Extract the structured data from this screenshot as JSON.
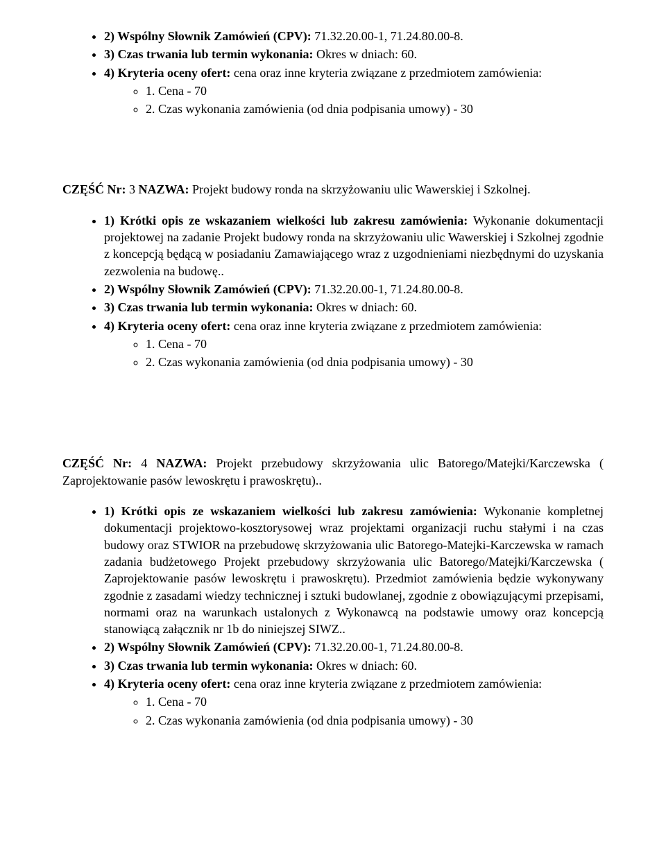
{
  "top": {
    "cpv_label": "2) Wspólny Słownik Zamówień (CPV):",
    "cpv_value": " 71.32.20.00-1, 71.24.80.00-8.",
    "dur_label": "3) Czas trwania lub termin wykonania:",
    "dur_value": " Okres w dniach: 60.",
    "crit_label": "4) Kryteria oceny ofert:",
    "crit_value": " cena oraz inne kryteria związane z przedmiotem zamówienia:",
    "sub1": "1. Cena - 70",
    "sub2": "2. Czas wykonania zamówienia (od dnia podpisania umowy) - 30"
  },
  "part3": {
    "heading_label": "CZĘŚĆ Nr:",
    "heading_num": " 3 ",
    "heading_name_label": "NAZWA:",
    "heading_name_value": " Projekt budowy ronda na skrzyżowaniu ulic Wawerskiej i Szkolnej.",
    "desc_label": "1) Krótki opis ze wskazaniem wielkości lub zakresu zamówienia:",
    "desc_value": " Wykonanie dokumentacji projektowej na zadanie Projekt budowy ronda na skrzyżowaniu ulic Wawerskiej i Szkolnej zgodnie z koncepcją będącą w posiadaniu Zamawiającego wraz z uzgodnieniami niezbędnymi do uzyskania zezwolenia na budowę..",
    "cpv_label": "2) Wspólny Słownik Zamówień (CPV):",
    "cpv_value": " 71.32.20.00-1, 71.24.80.00-8.",
    "dur_label": "3) Czas trwania lub termin wykonania:",
    "dur_value": " Okres w dniach: 60.",
    "crit_label": "4) Kryteria oceny ofert:",
    "crit_value": " cena oraz inne kryteria związane z przedmiotem zamówienia:",
    "sub1": "1. Cena - 70",
    "sub2": "2. Czas wykonania zamówienia (od dnia podpisania umowy) - 30"
  },
  "part4": {
    "heading_label": "CZĘŚĆ Nr:",
    "heading_num": " 4 ",
    "heading_name_label": "NAZWA:",
    "heading_name_value": " Projekt przebudowy skrzyżowania ulic Batorego/Matejki/Karczewska ( Zaprojektowanie pasów lewoskrętu i prawoskrętu)..",
    "desc_label": "1) Krótki opis ze wskazaniem wielkości lub zakresu zamówienia:",
    "desc_value": " Wykonanie kompletnej dokumentacji projektowo-kosztorysowej wraz projektami organizacji ruchu stałymi i na czas budowy oraz STWIOR na przebudowę skrzyżowania ulic Batorego-Matejki-Karczewska w ramach zadania budżetowego Projekt przebudowy skrzyżowania ulic Batorego/Matejki/Karczewska ( Zaprojektowanie pasów lewoskrętu i prawoskrętu). Przedmiot zamówienia będzie wykonywany zgodnie z zasadami wiedzy technicznej i sztuki budowlanej, zgodnie z obowiązującymi przepisami, normami oraz na warunkach ustalonych z Wykonawcą na podstawie umowy oraz koncepcją stanowiącą załącznik nr 1b do niniejszej SIWZ..",
    "cpv_label": "2) Wspólny Słownik Zamówień (CPV):",
    "cpv_value": " 71.32.20.00-1, 71.24.80.00-8.",
    "dur_label": "3) Czas trwania lub termin wykonania:",
    "dur_value": " Okres w dniach: 60.",
    "crit_label": "4) Kryteria oceny ofert:",
    "crit_value": " cena oraz inne kryteria związane z przedmiotem zamówienia:",
    "sub1": "1. Cena - 70",
    "sub2": "2. Czas wykonania zamówienia (od dnia podpisania umowy) - 30"
  }
}
